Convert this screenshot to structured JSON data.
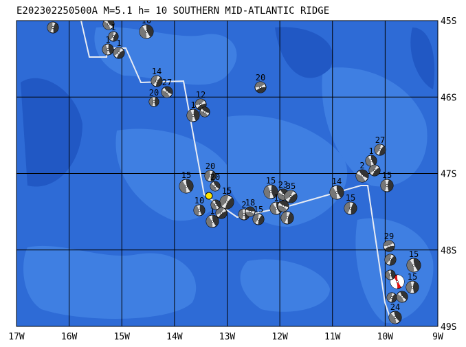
{
  "header": {
    "title": "E202302250500A  M=5.1  h= 10 SOUTHERN MID-ATLANTIC RIDGE"
  },
  "axes": {
    "longitude_labels": [
      "17W",
      "16W",
      "15W",
      "14W",
      "13W",
      "12W",
      "11W",
      "10W",
      "9W"
    ],
    "latitude_labels": [
      "45S",
      "46S",
      "47S",
      "48S",
      "49S"
    ]
  },
  "depth_labels": [
    "15",
    "14",
    "1",
    "1",
    "1",
    "10",
    "14",
    "27",
    "20",
    "12",
    "1",
    "20",
    "15",
    "20",
    "20",
    "10",
    "15",
    "1",
    "2",
    "18",
    "15",
    "15",
    "23",
    "35",
    "1",
    "14",
    "15",
    "27",
    "1",
    "2",
    "15",
    "29",
    "15",
    "15",
    "24"
  ]
}
